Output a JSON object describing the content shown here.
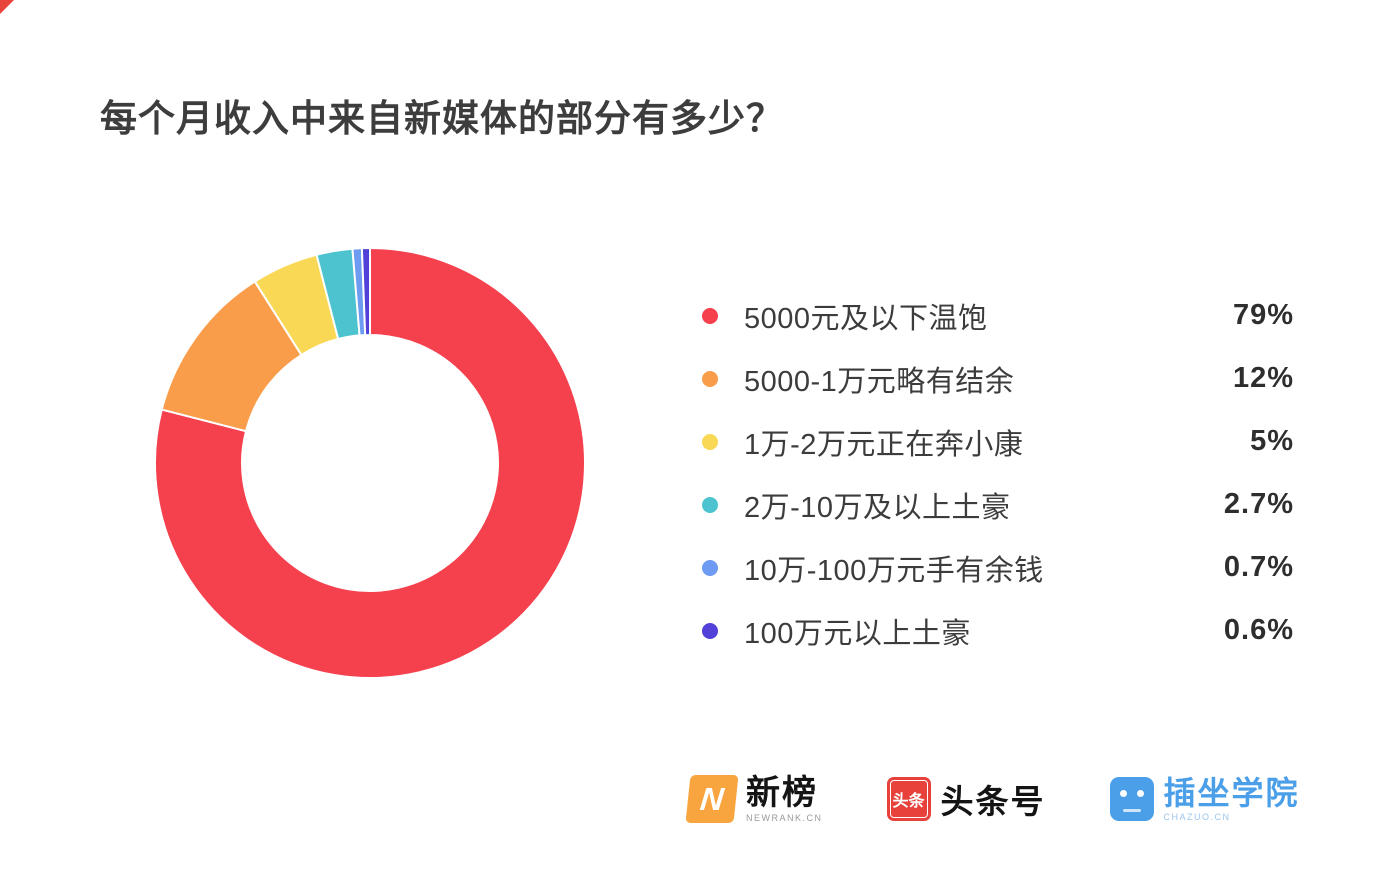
{
  "title": "每个月收入中来自新媒体的部分有多少？",
  "chart_data": {
    "type": "pie",
    "donut": true,
    "title": "每个月收入中来自新媒体的部分有多少？",
    "legend_position": "right",
    "labels": [
      "5000元及以下温饱",
      "5000-1万元略有结余",
      "1万-2万元正在奔小康",
      "2万-10万及以上土豪",
      "10万-100万元手有余钱",
      "100万元以上土豪"
    ],
    "values": [
      79,
      12,
      5,
      2.7,
      0.7,
      0.6
    ],
    "value_labels": [
      "79%",
      "12%",
      "5%",
      "2.7%",
      "0.7%",
      "0.6%"
    ],
    "colors": [
      "#f5414e",
      "#f99d4b",
      "#f9d855",
      "#4cc3cf",
      "#6d9bf1",
      "#5141d8"
    ],
    "start_angle_deg": 0,
    "direction": "clockwise"
  },
  "footer": {
    "logos": [
      {
        "id": "newrank",
        "mark": "N",
        "text": "新榜",
        "subtext": "NEWRANK.CN",
        "color": "#f9a53f"
      },
      {
        "id": "toutiao",
        "mark": "头条",
        "text": "头条号",
        "color": "#e8413c"
      },
      {
        "id": "chazuo",
        "text": "插坐学院",
        "subtext": "CHAZUO.CN",
        "color": "#4a9fe8"
      }
    ]
  }
}
